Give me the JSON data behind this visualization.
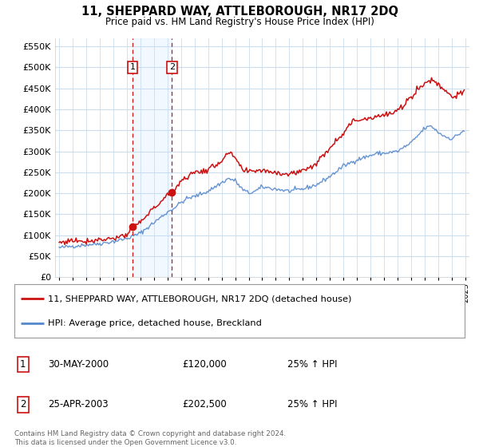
{
  "title": "11, SHEPPARD WAY, ATTLEBOROUGH, NR17 2DQ",
  "subtitle": "Price paid vs. HM Land Registry's House Price Index (HPI)",
  "ytick_values": [
    0,
    50000,
    100000,
    150000,
    200000,
    250000,
    300000,
    350000,
    400000,
    450000,
    500000,
    550000
  ],
  "ylim": [
    0,
    570000
  ],
  "xlim_start": 1994.7,
  "xlim_end": 2025.3,
  "hpi_color": "#5588cc",
  "price_color": "#cc1111",
  "transaction1_date": 2000.41,
  "transaction1_price": 120000,
  "transaction2_date": 2003.32,
  "transaction2_price": 202500,
  "shade_x1": 2000.41,
  "shade_x2": 2003.32,
  "legend_label_price": "11, SHEPPARD WAY, ATTLEBOROUGH, NR17 2DQ (detached house)",
  "legend_label_hpi": "HPI: Average price, detached house, Breckland",
  "table_row1": [
    "1",
    "30-MAY-2000",
    "£120,000",
    "25% ↑ HPI"
  ],
  "table_row2": [
    "2",
    "25-APR-2003",
    "£202,500",
    "25% ↑ HPI"
  ],
  "footnote": "Contains HM Land Registry data © Crown copyright and database right 2024.\nThis data is licensed under the Open Government Licence v3.0.",
  "background_color": "#ffffff",
  "plot_bg_color": "#ffffff",
  "grid_color": "#ccddee"
}
